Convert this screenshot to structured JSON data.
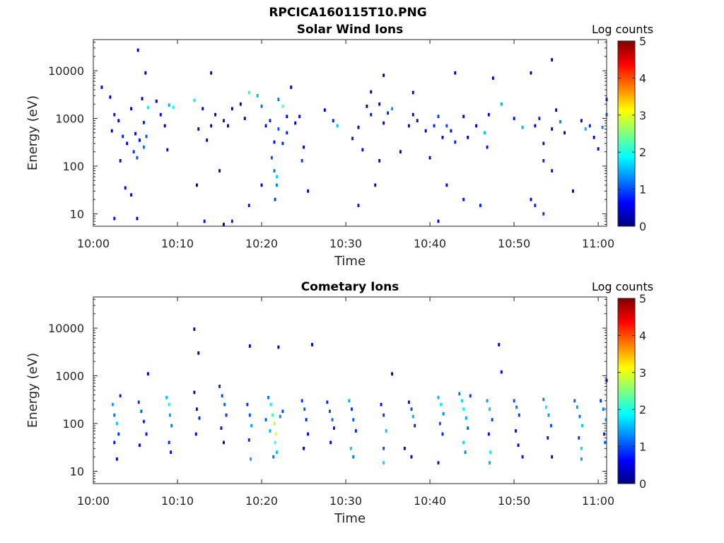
{
  "title": "RPCICA160115T10.PNG",
  "colormap": {
    "name": "jet",
    "stops": [
      "#00007f",
      "#0000ff",
      "#007fff",
      "#00ffff",
      "#7fff7f",
      "#ffff00",
      "#ff7f00",
      "#ff0000",
      "#7f0000"
    ]
  },
  "chart_data": [
    {
      "type": "heatmap",
      "title": "Solar Wind Ions",
      "xlabel": "Time",
      "ylabel": "Energy (eV)",
      "xlim": [
        "10:00",
        "11:01"
      ],
      "ylim": [
        5.5,
        45000
      ],
      "yscale": "log",
      "xticks": [
        "10:00",
        "10:10",
        "10:20",
        "10:30",
        "10:40",
        "10:50",
        "11:00"
      ],
      "yticks": [
        {
          "value": 10,
          "label": "10"
        },
        {
          "value": 100,
          "label": "100"
        },
        {
          "value": 1000,
          "label": "1000"
        },
        {
          "value": 10000,
          "label": "10000"
        }
      ],
      "colorbar": {
        "label": "Log counts",
        "min": 0,
        "max": 5,
        "ticks": [
          "0",
          "1",
          "2",
          "3",
          "4",
          "5"
        ]
      },
      "grid": false,
      "points": [
        [
          1.0,
          4500,
          0.6
        ],
        [
          2.0,
          2800,
          0.5
        ],
        [
          2.5,
          1200,
          0.7
        ],
        [
          3.0,
          900,
          0.4
        ],
        [
          2.2,
          550,
          0.6
        ],
        [
          3.5,
          420,
          0.8
        ],
        [
          4.0,
          300,
          0.5
        ],
        [
          4.8,
          200,
          0.9
        ],
        [
          5.2,
          150,
          1.0
        ],
        [
          5.0,
          480,
          0.7
        ],
        [
          5.5,
          350,
          0.6
        ],
        [
          6.0,
          250,
          1.2
        ],
        [
          6.3,
          420,
          1.0
        ],
        [
          6.0,
          820,
          0.8
        ],
        [
          4.5,
          1600,
          0.5
        ],
        [
          5.8,
          2600,
          0.4
        ],
        [
          6.2,
          9000,
          0.3
        ],
        [
          5.3,
          27000,
          0.3
        ],
        [
          6.5,
          1700,
          1.8
        ],
        [
          7.5,
          2300,
          0.5
        ],
        [
          8.0,
          1200,
          0.6
        ],
        [
          8.5,
          700,
          0.4
        ],
        [
          9.0,
          1900,
          1.5
        ],
        [
          9.5,
          1700,
          1.9
        ],
        [
          8.8,
          220,
          0.7
        ],
        [
          3.2,
          130,
          0.6
        ],
        [
          3.8,
          35,
          0.5
        ],
        [
          4.5,
          25,
          0.6
        ],
        [
          2.5,
          8,
          0.7
        ],
        [
          5.2,
          8,
          0.5
        ],
        [
          12.0,
          2400,
          1.8
        ],
        [
          13.0,
          1600,
          0.5
        ],
        [
          14.0,
          700,
          0.6
        ],
        [
          12.5,
          600,
          0.4
        ],
        [
          14.5,
          1200,
          0.5
        ],
        [
          15.5,
          900,
          0.7
        ],
        [
          16.0,
          700,
          0.6
        ],
        [
          16.5,
          1600,
          0.5
        ],
        [
          13.5,
          350,
          0.6
        ],
        [
          15.0,
          80,
          0.5
        ],
        [
          12.3,
          40,
          0.4
        ],
        [
          13.2,
          7,
          0.7
        ],
        [
          15.5,
          6,
          0.4
        ],
        [
          16.5,
          7,
          0.8
        ],
        [
          14.0,
          9000,
          0.3
        ],
        [
          18.5,
          3500,
          2.0
        ],
        [
          19.5,
          3000,
          1.5
        ],
        [
          20.0,
          1800,
          1.2
        ],
        [
          21.0,
          900,
          0.8
        ],
        [
          22.0,
          2500,
          1.2
        ],
        [
          22.5,
          1800,
          2.3
        ],
        [
          23.0,
          1100,
          0.6
        ],
        [
          24.0,
          800,
          0.5
        ],
        [
          21.5,
          320,
          0.7
        ],
        [
          22.5,
          300,
          0.8
        ],
        [
          21.2,
          150,
          1.0
        ],
        [
          21.5,
          80,
          1.2
        ],
        [
          21.8,
          40,
          1.3
        ],
        [
          21.6,
          20,
          0.9
        ],
        [
          21.8,
          60,
          1.7
        ],
        [
          20.0,
          40,
          0.5
        ],
        [
          18.5,
          15,
          0.7
        ],
        [
          23.0,
          500,
          0.8
        ],
        [
          24.5,
          1100,
          0.6
        ],
        [
          25.0,
          250,
          0.7
        ],
        [
          24.8,
          130,
          0.9
        ],
        [
          25.5,
          30,
          0.6
        ],
        [
          22.0,
          600,
          1.1
        ],
        [
          20.5,
          700,
          0.6
        ],
        [
          18.0,
          1000,
          0.5
        ],
        [
          17.5,
          2000,
          0.4
        ],
        [
          23.5,
          4500,
          0.3
        ],
        [
          27.5,
          1500,
          0.5
        ],
        [
          29.0,
          700,
          1.6
        ],
        [
          28.5,
          900,
          0.8
        ],
        [
          30.8,
          380,
          0.7
        ],
        [
          31.5,
          650,
          0.5
        ],
        [
          32.0,
          220,
          0.6
        ],
        [
          32.5,
          1800,
          0.5
        ],
        [
          33.0,
          1200,
          0.7
        ],
        [
          34.0,
          2000,
          0.6
        ],
        [
          34.5,
          800,
          0.5
        ],
        [
          35.0,
          1300,
          0.8
        ],
        [
          35.5,
          1600,
          1.4
        ],
        [
          34.0,
          130,
          0.5
        ],
        [
          33.5,
          40,
          0.6
        ],
        [
          31.5,
          15,
          0.7
        ],
        [
          36.5,
          200,
          0.5
        ],
        [
          37.5,
          700,
          0.6
        ],
        [
          38.0,
          1200,
          0.5
        ],
        [
          34.5,
          8000,
          0.3
        ],
        [
          33.0,
          3600,
          0.4
        ],
        [
          38.5,
          900,
          0.6
        ],
        [
          39.5,
          550,
          0.5
        ],
        [
          40.5,
          700,
          0.8
        ],
        [
          41.0,
          1100,
          0.9
        ],
        [
          41.5,
          400,
          0.6
        ],
        [
          42.0,
          700,
          1.0
        ],
        [
          42.5,
          550,
          0.7
        ],
        [
          43.0,
          320,
          0.8
        ],
        [
          44.0,
          1100,
          0.6
        ],
        [
          44.5,
          400,
          0.5
        ],
        [
          45.5,
          700,
          0.6
        ],
        [
          46.5,
          500,
          1.6
        ],
        [
          47.0,
          1200,
          0.5
        ],
        [
          46.8,
          250,
          0.7
        ],
        [
          48.5,
          2000,
          1.5
        ],
        [
          47.5,
          7000,
          0.4
        ],
        [
          40.0,
          150,
          0.5
        ],
        [
          42.0,
          40,
          0.6
        ],
        [
          44.0,
          20,
          0.7
        ],
        [
          46.0,
          15,
          0.8
        ],
        [
          41.0,
          7,
          0.6
        ],
        [
          43.0,
          9000,
          0.3
        ],
        [
          38.0,
          3500,
          0.4
        ],
        [
          50.0,
          1000,
          0.7
        ],
        [
          51.0,
          650,
          1.5
        ],
        [
          52.5,
          700,
          0.5
        ],
        [
          53.0,
          1000,
          0.8
        ],
        [
          53.5,
          300,
          0.7
        ],
        [
          54.5,
          600,
          0.5
        ],
        [
          55.0,
          1500,
          0.5
        ],
        [
          55.5,
          850,
          1.3
        ],
        [
          56.0,
          500,
          0.6
        ],
        [
          58.0,
          900,
          0.6
        ],
        [
          58.5,
          600,
          1.5
        ],
        [
          59.0,
          700,
          0.8
        ],
        [
          59.5,
          400,
          0.6
        ],
        [
          60.5,
          650,
          1.3
        ],
        [
          61.0,
          1200,
          1.1
        ],
        [
          60.0,
          230,
          0.6
        ],
        [
          61.0,
          2500,
          0.4
        ],
        [
          53.5,
          130,
          0.8
        ],
        [
          54.5,
          80,
          0.7
        ],
        [
          52.0,
          20,
          0.6
        ],
        [
          52.5,
          15,
          0.8
        ],
        [
          53.5,
          10,
          0.9
        ],
        [
          57.0,
          30,
          0.5
        ],
        [
          52.0,
          9000,
          0.3
        ],
        [
          54.5,
          17000,
          0.3
        ]
      ]
    },
    {
      "type": "heatmap",
      "title": "Cometary Ions",
      "xlabel": "Time",
      "ylabel": "Energy (eV)",
      "xlim": [
        "10:00",
        "11:01"
      ],
      "ylim": [
        5.5,
        45000
      ],
      "yscale": "log",
      "xticks": [
        "10:00",
        "10:10",
        "10:20",
        "10:30",
        "10:40",
        "10:50",
        "11:00"
      ],
      "yticks": [
        {
          "value": 10,
          "label": "10"
        },
        {
          "value": 100,
          "label": "100"
        },
        {
          "value": 1000,
          "label": "1000"
        },
        {
          "value": 10000,
          "label": "10000"
        }
      ],
      "colorbar": {
        "label": "Log counts",
        "min": 0,
        "max": 5,
        "ticks": [
          "0",
          "1",
          "2",
          "3",
          "4",
          "5"
        ]
      },
      "grid": false,
      "points": [
        [
          2.3,
          250,
          1.4
        ],
        [
          2.5,
          150,
          1.2
        ],
        [
          2.8,
          100,
          1.6
        ],
        [
          3.0,
          60,
          0.9
        ],
        [
          2.5,
          40,
          0.7
        ],
        [
          3.2,
          380,
          0.8
        ],
        [
          2.8,
          18,
          0.6
        ],
        [
          5.4,
          280,
          0.9
        ],
        [
          5.7,
          180,
          1.1
        ],
        [
          6.0,
          110,
          0.8
        ],
        [
          6.3,
          60,
          0.7
        ],
        [
          5.5,
          35,
          0.6
        ],
        [
          6.5,
          1100,
          0.4
        ],
        [
          8.7,
          350,
          1.6
        ],
        [
          9.0,
          250,
          1.9
        ],
        [
          9.1,
          150,
          1.4
        ],
        [
          9.3,
          90,
          1.2
        ],
        [
          9.0,
          40,
          0.8
        ],
        [
          9.2,
          25,
          0.7
        ],
        [
          12.0,
          450,
          0.6
        ],
        [
          12.3,
          200,
          0.7
        ],
        [
          12.6,
          130,
          0.8
        ],
        [
          12.2,
          60,
          0.6
        ],
        [
          12.0,
          9500,
          0.5
        ],
        [
          12.5,
          3000,
          0.4
        ],
        [
          15.0,
          600,
          0.8
        ],
        [
          15.3,
          380,
          1.0
        ],
        [
          15.6,
          250,
          1.1
        ],
        [
          15.8,
          150,
          0.9
        ],
        [
          15.2,
          80,
          0.7
        ],
        [
          15.5,
          40,
          0.6
        ],
        [
          18.3,
          250,
          0.9
        ],
        [
          18.6,
          150,
          1.0
        ],
        [
          18.8,
          90,
          1.4
        ],
        [
          18.5,
          45,
          0.8
        ],
        [
          18.7,
          18,
          1.5
        ],
        [
          18.6,
          4200,
          0.4
        ],
        [
          20.8,
          350,
          1.2
        ],
        [
          21.1,
          250,
          1.8
        ],
        [
          21.3,
          150,
          2.2
        ],
        [
          21.5,
          100,
          2.7
        ],
        [
          21.7,
          60,
          3.0
        ],
        [
          21.6,
          40,
          2.2
        ],
        [
          21.8,
          25,
          1.6
        ],
        [
          21.4,
          20,
          1.2
        ],
        [
          21.0,
          70,
          1.5
        ],
        [
          20.5,
          120,
          1.1
        ],
        [
          22.2,
          140,
          1.3
        ],
        [
          22.5,
          180,
          1.0
        ],
        [
          22.0,
          4000,
          0.4
        ],
        [
          24.8,
          300,
          0.9
        ],
        [
          25.1,
          200,
          1.1
        ],
        [
          25.3,
          120,
          0.8
        ],
        [
          25.5,
          60,
          0.6
        ],
        [
          25.0,
          30,
          0.5
        ],
        [
          26.0,
          4500,
          0.3
        ],
        [
          27.8,
          280,
          0.8
        ],
        [
          28.1,
          180,
          1.0
        ],
        [
          28.4,
          120,
          1.2
        ],
        [
          28.6,
          80,
          0.7
        ],
        [
          28.2,
          40,
          0.5
        ],
        [
          30.4,
          300,
          1.5
        ],
        [
          30.7,
          200,
          0.9
        ],
        [
          30.9,
          120,
          1.1
        ],
        [
          31.2,
          70,
          0.8
        ],
        [
          30.6,
          30,
          1.6
        ],
        [
          30.9,
          20,
          1.2
        ],
        [
          34.2,
          250,
          0.7
        ],
        [
          34.5,
          150,
          0.9
        ],
        [
          34.8,
          70,
          1.6
        ],
        [
          34.5,
          30,
          1.0
        ],
        [
          34.5,
          15,
          1.7
        ],
        [
          35.5,
          1100,
          0.4
        ],
        [
          37.5,
          280,
          0.6
        ],
        [
          37.8,
          200,
          1.0
        ],
        [
          38.0,
          140,
          1.5
        ],
        [
          38.2,
          90,
          0.8
        ],
        [
          37.0,
          30,
          0.6
        ],
        [
          37.8,
          20,
          0.5
        ],
        [
          41.0,
          350,
          1.5
        ],
        [
          41.3,
          250,
          1.8
        ],
        [
          41.6,
          160,
          1.3
        ],
        [
          41.2,
          100,
          1.0
        ],
        [
          41.5,
          60,
          0.8
        ],
        [
          41.0,
          15,
          0.7
        ],
        [
          43.5,
          420,
          1.2
        ],
        [
          43.8,
          300,
          1.7
        ],
        [
          44.0,
          200,
          1.9
        ],
        [
          44.3,
          130,
          1.5
        ],
        [
          44.5,
          80,
          1.1
        ],
        [
          44.0,
          40,
          1.7
        ],
        [
          44.2,
          25,
          1.3
        ],
        [
          44.8,
          380,
          0.9
        ],
        [
          46.8,
          300,
          1.4
        ],
        [
          47.1,
          200,
          1.6
        ],
        [
          47.4,
          120,
          1.0
        ],
        [
          47.0,
          60,
          0.7
        ],
        [
          47.2,
          25,
          1.8
        ],
        [
          47.1,
          15,
          1.5
        ],
        [
          48.2,
          4500,
          0.5
        ],
        [
          48.5,
          1200,
          0.6
        ],
        [
          50.0,
          300,
          1.0
        ],
        [
          50.3,
          220,
          1.2
        ],
        [
          50.6,
          150,
          0.9
        ],
        [
          50.2,
          70,
          0.7
        ],
        [
          50.5,
          35,
          0.6
        ],
        [
          51.0,
          20,
          0.7
        ],
        [
          53.5,
          320,
          1.3
        ],
        [
          53.8,
          220,
          1.8
        ],
        [
          54.1,
          150,
          1.4
        ],
        [
          54.4,
          90,
          1.0
        ],
        [
          54.0,
          50,
          0.7
        ],
        [
          54.5,
          20,
          0.6
        ],
        [
          57.2,
          300,
          1.1
        ],
        [
          57.5,
          220,
          1.4
        ],
        [
          57.8,
          140,
          1.2
        ],
        [
          58.1,
          90,
          1.6
        ],
        [
          57.7,
          50,
          0.9
        ],
        [
          58.0,
          30,
          1.7
        ],
        [
          58.0,
          18,
          1.4
        ],
        [
          60.3,
          300,
          0.9
        ],
        [
          60.6,
          200,
          1.2
        ],
        [
          60.9,
          120,
          1.5
        ],
        [
          60.7,
          60,
          0.8
        ],
        [
          60.8,
          40,
          1.2
        ],
        [
          61.0,
          800,
          0.5
        ]
      ]
    }
  ]
}
